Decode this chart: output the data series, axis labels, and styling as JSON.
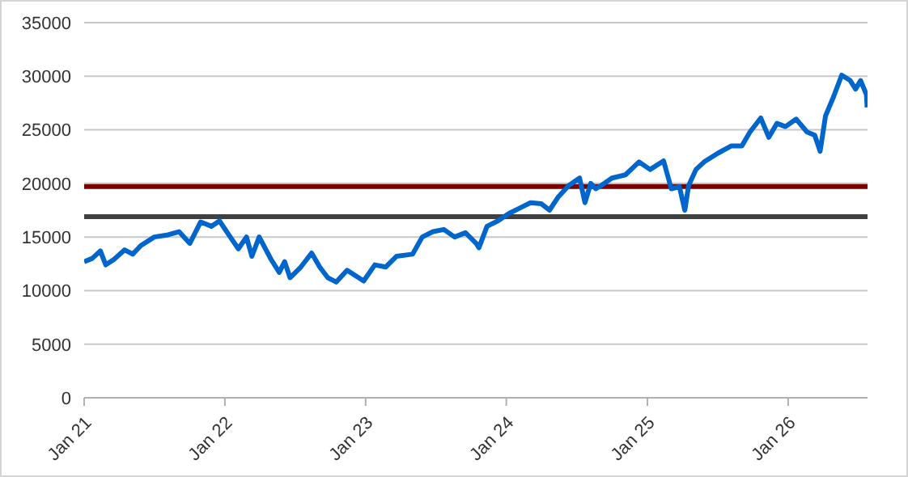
{
  "chart_data": {
    "type": "line",
    "x": [
      "2021-01-01",
      "2021-01-22",
      "2021-02-12",
      "2021-02-26",
      "2021-03-19",
      "2021-04-16",
      "2021-05-07",
      "2021-05-28",
      "2021-07-02",
      "2021-08-07",
      "2021-09-04",
      "2021-10-02",
      "2021-10-30",
      "2021-11-27",
      "2021-12-18",
      "2022-01-15",
      "2022-02-05",
      "2022-02-26",
      "2022-03-12",
      "2022-03-31",
      "2022-05-01",
      "2022-05-22",
      "2022-06-05",
      "2022-06-19",
      "2022-07-17",
      "2022-08-14",
      "2022-09-04",
      "2022-09-25",
      "2022-10-17",
      "2022-11-14",
      "2022-12-05",
      "2022-12-27",
      "2023-01-25",
      "2023-02-22",
      "2023-03-22",
      "2023-05-03",
      "2023-05-28",
      "2023-06-25",
      "2023-07-23",
      "2023-08-20",
      "2023-09-17",
      "2023-10-15",
      "2023-10-22",
      "2023-11-12",
      "2023-12-10",
      "2024-01-08",
      "2024-02-05",
      "2024-03-04",
      "2024-04-01",
      "2024-04-22",
      "2024-05-14",
      "2024-06-11",
      "2024-07-09",
      "2024-07-23",
      "2024-08-07",
      "2024-08-20",
      "2024-09-03",
      "2024-10-01",
      "2024-11-05",
      "2024-12-10",
      "2025-01-08",
      "2025-02-12",
      "2025-03-04",
      "2025-03-25",
      "2025-04-08",
      "2025-04-18",
      "2025-05-07",
      "2025-05-28",
      "2025-07-02",
      "2025-08-07",
      "2025-09-03",
      "2025-09-24",
      "2025-10-22",
      "2025-11-12",
      "2025-12-03",
      "2025-12-25",
      "2026-01-22",
      "2026-02-19",
      "2026-03-11",
      "2026-03-25",
      "2026-04-08",
      "2026-04-29",
      "2026-05-20",
      "2026-06-11",
      "2026-06-25",
      "2026-07-08",
      "2026-07-23",
      "2026-07-25"
    ],
    "series": [
      {
        "color": "#0066cc",
        "values": [
          12700,
          13000,
          13700,
          12400,
          12900,
          13800,
          13400,
          14200,
          15000,
          15200,
          15500,
          14400,
          16400,
          16000,
          16500,
          15000,
          13900,
          15000,
          13200,
          15000,
          12900,
          11700,
          12700,
          11200,
          12200,
          13500,
          12200,
          11200,
          10800,
          11900,
          11400,
          10900,
          12400,
          12200,
          13200,
          13400,
          15000,
          15500,
          15700,
          15000,
          15400,
          14400,
          14000,
          16000,
          16500,
          17200,
          17700,
          18200,
          18100,
          17500,
          18700,
          19800,
          20500,
          18200,
          20000,
          19500,
          19800,
          20500,
          20800,
          22000,
          21300,
          22100,
          19500,
          19700,
          17500,
          19800,
          21300,
          22000,
          22800,
          23500,
          23500,
          24800,
          26100,
          24300,
          25600,
          25300,
          26000,
          24800,
          24500,
          23000,
          26300,
          28100,
          30100,
          29600,
          28800,
          29600,
          28300,
          27100
        ]
      }
    ],
    "xlim": [
      "2021-01-01",
      "2026-07-26"
    ],
    "xticks": [
      {
        "value": "2021-01-01",
        "label": "Jan 21"
      },
      {
        "value": "2022-01-01",
        "label": "Jan 22"
      },
      {
        "value": "2023-01-01",
        "label": "Jan 23"
      },
      {
        "value": "2024-01-01",
        "label": "Jan 24"
      },
      {
        "value": "2025-01-01",
        "label": "Jan 25"
      },
      {
        "value": "2026-01-01",
        "label": "Jan 26"
      }
    ],
    "ylim": [
      0,
      35000
    ],
    "yticks": [
      0,
      5000,
      10000,
      15000,
      20000,
      25000,
      30000,
      35000
    ],
    "ref_lines": [
      {
        "axis": "y",
        "value": 19700,
        "color": "#7a0000"
      },
      {
        "axis": "y",
        "value": 16900,
        "color": "#404040"
      }
    ],
    "grid": "y",
    "legend": false,
    "marker": "none",
    "line_style": "solid"
  }
}
